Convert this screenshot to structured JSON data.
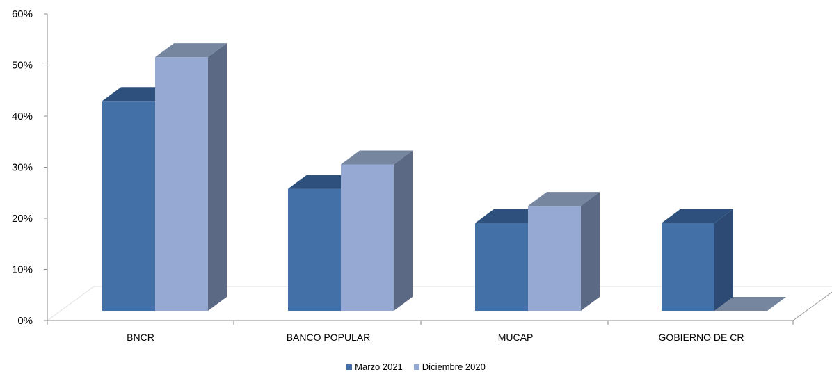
{
  "chart_data": {
    "type": "bar",
    "categories": [
      "BNCR",
      "BANCO POPULAR",
      "MUCAP",
      "GOBIERNO DE CR"
    ],
    "series": [
      {
        "name": "Marzo 2021",
        "values": [
          0.43,
          0.25,
          0.18,
          0.18
        ]
      },
      {
        "name": "Diciembre 2020",
        "values": [
          0.52,
          0.3,
          0.215,
          0.0
        ]
      }
    ],
    "y_ticks": [
      "0%",
      "10%",
      "20%",
      "30%",
      "40%",
      "50%",
      "60%"
    ],
    "ylim": [
      0,
      0.6
    ],
    "three_d": true,
    "legend_position": "bottom",
    "grid": false,
    "colors": {
      "series_front": [
        "#4470a8",
        "#95a9d2"
      ],
      "series_side": [
        "#2c4a73",
        "#5b6985"
      ],
      "series_top": [
        "#2d507d",
        "#77869f"
      ]
    }
  }
}
